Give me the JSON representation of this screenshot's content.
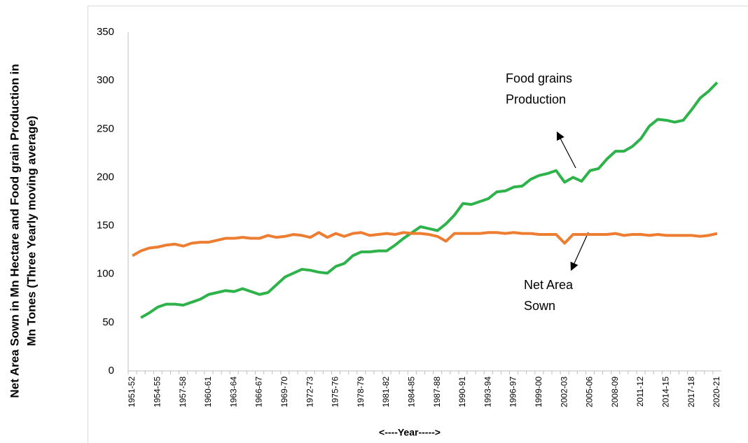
{
  "chart_data": {
    "type": "line",
    "y_label": [
      "Net Area Sown in Mn Hectare and Food grain Production in",
      "Mn Tones (Three Yearly moving average)"
    ],
    "x_label": "<----Year----->",
    "annotations": [
      [
        "Food grains",
        "Production"
      ],
      [
        "Net Area",
        "Sown"
      ]
    ],
    "categories": [
      "1951-52",
      null,
      null,
      "1954-55",
      null,
      null,
      "1957-58",
      null,
      null,
      "1960-61",
      null,
      null,
      "1963-64",
      null,
      null,
      "1966-67",
      null,
      null,
      "1969-70",
      null,
      null,
      "1972-73",
      null,
      null,
      "1975-76",
      null,
      null,
      "1978-79",
      null,
      null,
      "1981-82",
      null,
      null,
      "1984-85",
      null,
      null,
      "1987-88",
      null,
      null,
      "1990-91",
      null,
      null,
      "1993-94",
      null,
      null,
      "1996-97",
      null,
      null,
      "1999-00",
      null,
      null,
      "2002-03",
      null,
      null,
      "2005-06",
      null,
      null,
      "2008-09",
      null,
      null,
      "2011-12",
      null,
      null,
      "2014-15",
      null,
      null,
      "2017-18",
      null,
      null,
      "2020-21"
    ],
    "series": [
      {
        "name": "Food grains Production",
        "color": "#2db34a",
        "values": [
          null,
          55,
          60,
          66,
          69,
          69,
          68,
          71,
          74,
          79,
          81,
          83,
          82,
          85,
          82,
          79,
          81,
          89,
          97,
          101,
          105,
          104,
          102,
          101,
          108,
          111,
          119,
          123,
          123,
          124,
          124,
          130,
          137,
          143,
          149,
          147,
          145,
          152,
          161,
          173,
          172,
          175,
          178,
          185,
          186,
          190,
          191,
          198,
          202,
          204,
          207,
          195,
          200,
          196,
          207,
          209,
          219,
          227,
          227,
          232,
          240,
          253,
          260,
          259,
          257,
          259,
          270,
          282,
          289,
          298
        ]
      },
      {
        "name": "Net Area Sown",
        "color": "#ed7d31",
        "values": [
          119,
          124,
          127,
          128,
          130,
          131,
          129,
          132,
          133,
          133,
          135,
          137,
          137,
          138,
          137,
          137,
          140,
          138,
          139,
          141,
          140,
          138,
          143,
          138,
          142,
          139,
          142,
          143,
          140,
          141,
          142,
          141,
          143,
          142,
          142,
          141,
          139,
          134,
          142,
          142,
          142,
          142,
          143,
          143,
          142,
          143,
          142,
          142,
          141,
          141,
          141,
          132,
          141,
          141,
          141,
          141,
          141,
          142,
          140,
          141,
          141,
          140,
          141,
          140,
          140,
          140,
          140,
          139,
          140,
          142
        ]
      }
    ],
    "ylim": [
      0,
      350
    ],
    "yticks": [
      0,
      50,
      100,
      150,
      200,
      250,
      300,
      350
    ],
    "grid": false
  }
}
